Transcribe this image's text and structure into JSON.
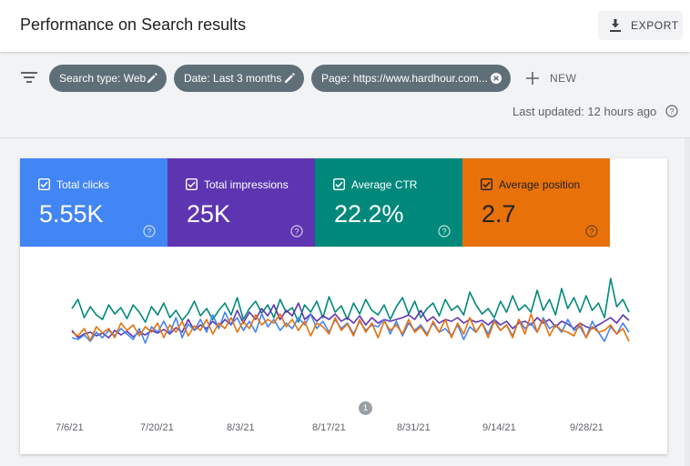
{
  "header": {
    "title": "Performance on Search results",
    "export_label": "EXPORT"
  },
  "filters": {
    "chips": [
      {
        "label": "Search type: Web",
        "action": "edit-icon"
      },
      {
        "label": "Date: Last 3 months",
        "action": "edit-icon"
      },
      {
        "label": "Page: https://www.hardhour.com...",
        "action": "clear-icon"
      }
    ],
    "new_label": "NEW",
    "last_updated": "Last updated: 12 hours ago"
  },
  "metrics": [
    {
      "label": "Total clicks",
      "value": "5.55K",
      "color": "#4285f4",
      "checked": true
    },
    {
      "label": "Total impressions",
      "value": "25K",
      "color": "#5e35b1",
      "checked": true
    },
    {
      "label": "Average CTR",
      "value": "22.2%",
      "color": "#00897b",
      "checked": true
    },
    {
      "label": "Average position",
      "value": "2.7",
      "color": "#e8710a",
      "checked": true
    }
  ],
  "chart_data": {
    "type": "line",
    "x_ticks": [
      "7/6/21",
      "7/20/21",
      "8/3/21",
      "8/17/21",
      "8/31/21",
      "9/14/21",
      "9/28/21"
    ],
    "annotation_marker": "1",
    "series": [
      {
        "name": "Average CTR",
        "color": "#00897b",
        "values": [
          0.62,
          0.72,
          0.52,
          0.64,
          0.55,
          0.5,
          0.66,
          0.56,
          0.63,
          0.51,
          0.66,
          0.58,
          0.47,
          0.64,
          0.55,
          0.68,
          0.52,
          0.6,
          0.49,
          0.57,
          0.7,
          0.54,
          0.62,
          0.5,
          0.6,
          0.68,
          0.55,
          0.74,
          0.5,
          0.62,
          0.7,
          0.57,
          0.66,
          0.52,
          0.72,
          0.58,
          0.63,
          0.47,
          0.66,
          0.58,
          0.7,
          0.52,
          0.75,
          0.58,
          0.65,
          0.5,
          0.68,
          0.56,
          0.72,
          0.6,
          0.55,
          0.66,
          0.5,
          0.64,
          0.74,
          0.56,
          0.7,
          0.52,
          0.62,
          0.68,
          0.54,
          0.72,
          0.6,
          0.65,
          0.55,
          0.8,
          0.66,
          0.56,
          0.62,
          0.52,
          0.7,
          0.58,
          0.76,
          0.6,
          0.66,
          0.58,
          0.82,
          0.6,
          0.72,
          0.55,
          0.84,
          0.62,
          0.74,
          0.58,
          0.76,
          0.6,
          0.68,
          0.52,
          0.95,
          0.64,
          0.72,
          0.58
        ]
      },
      {
        "name": "Total impressions",
        "color": "#5e35b1",
        "values": [
          0.38,
          0.3,
          0.34,
          0.36,
          0.32,
          0.35,
          0.3,
          0.38,
          0.33,
          0.37,
          0.31,
          0.36,
          0.33,
          0.38,
          0.35,
          0.39,
          0.34,
          0.41,
          0.36,
          0.5,
          0.38,
          0.44,
          0.4,
          0.48,
          0.42,
          0.5,
          0.44,
          0.6,
          0.46,
          0.58,
          0.5,
          0.62,
          0.54,
          0.66,
          0.5,
          0.6,
          0.54,
          0.68,
          0.5,
          0.56,
          0.48,
          0.54,
          0.5,
          0.56,
          0.48,
          0.52,
          0.46,
          0.54,
          0.44,
          0.52,
          0.46,
          0.5,
          0.48,
          0.5,
          0.52,
          0.55,
          0.5,
          0.6,
          0.48,
          0.53,
          0.46,
          0.5,
          0.48,
          0.52,
          0.46,
          0.5,
          0.47,
          0.49,
          0.44,
          0.5,
          0.44,
          0.48,
          0.4,
          0.46,
          0.48,
          0.44,
          0.52,
          0.46,
          0.5,
          0.42,
          0.48,
          0.45,
          0.4,
          0.46,
          0.42,
          0.4,
          0.44,
          0.48,
          0.52,
          0.46,
          0.55,
          0.49
        ]
      },
      {
        "name": "Total clicks",
        "color": "#4285f4",
        "values": [
          0.3,
          0.28,
          0.33,
          0.26,
          0.36,
          0.3,
          0.38,
          0.32,
          0.4,
          0.34,
          0.28,
          0.4,
          0.24,
          0.42,
          0.36,
          0.48,
          0.35,
          0.52,
          0.3,
          0.45,
          0.38,
          0.5,
          0.36,
          0.55,
          0.4,
          0.58,
          0.44,
          0.52,
          0.38,
          0.48,
          0.36,
          0.56,
          0.42,
          0.5,
          0.38,
          0.46,
          0.4,
          0.52,
          0.44,
          0.56,
          0.4,
          0.48,
          0.36,
          0.5,
          0.4,
          0.46,
          0.34,
          0.48,
          0.38,
          0.44,
          0.42,
          0.5,
          0.34,
          0.48,
          0.32,
          0.46,
          0.38,
          0.44,
          0.34,
          0.46,
          0.36,
          0.4,
          0.32,
          0.44,
          0.28,
          0.42,
          0.36,
          0.46,
          0.34,
          0.5,
          0.38,
          0.44,
          0.32,
          0.5,
          0.4,
          0.46,
          0.36,
          0.52,
          0.4,
          0.44,
          0.36,
          0.5,
          0.38,
          0.42,
          0.3,
          0.48,
          0.36,
          0.26,
          0.42,
          0.34,
          0.46,
          0.36
        ]
      },
      {
        "name": "Average position",
        "color": "#e8710a",
        "values": [
          0.36,
          0.32,
          0.4,
          0.27,
          0.42,
          0.35,
          0.4,
          0.3,
          0.46,
          0.38,
          0.44,
          0.32,
          0.42,
          0.36,
          0.46,
          0.3,
          0.44,
          0.36,
          0.48,
          0.32,
          0.43,
          0.38,
          0.5,
          0.34,
          0.46,
          0.4,
          0.52,
          0.36,
          0.48,
          0.4,
          0.55,
          0.44,
          0.5,
          0.46,
          0.56,
          0.42,
          0.5,
          0.38,
          0.48,
          0.32,
          0.46,
          0.42,
          0.34,
          0.52,
          0.38,
          0.45,
          0.32,
          0.5,
          0.36,
          0.46,
          0.3,
          0.48,
          0.38,
          0.44,
          0.34,
          0.5,
          0.36,
          0.42,
          0.32,
          0.48,
          0.36,
          0.5,
          0.3,
          0.46,
          0.34,
          0.52,
          0.36,
          0.46,
          0.3,
          0.48,
          0.38,
          0.44,
          0.3,
          0.5,
          0.34,
          0.56,
          0.36,
          0.5,
          0.32,
          0.44,
          0.38,
          0.36,
          0.32,
          0.46,
          0.3,
          0.42,
          0.36,
          0.38,
          0.44,
          0.34,
          0.4,
          0.26
        ]
      }
    ]
  }
}
